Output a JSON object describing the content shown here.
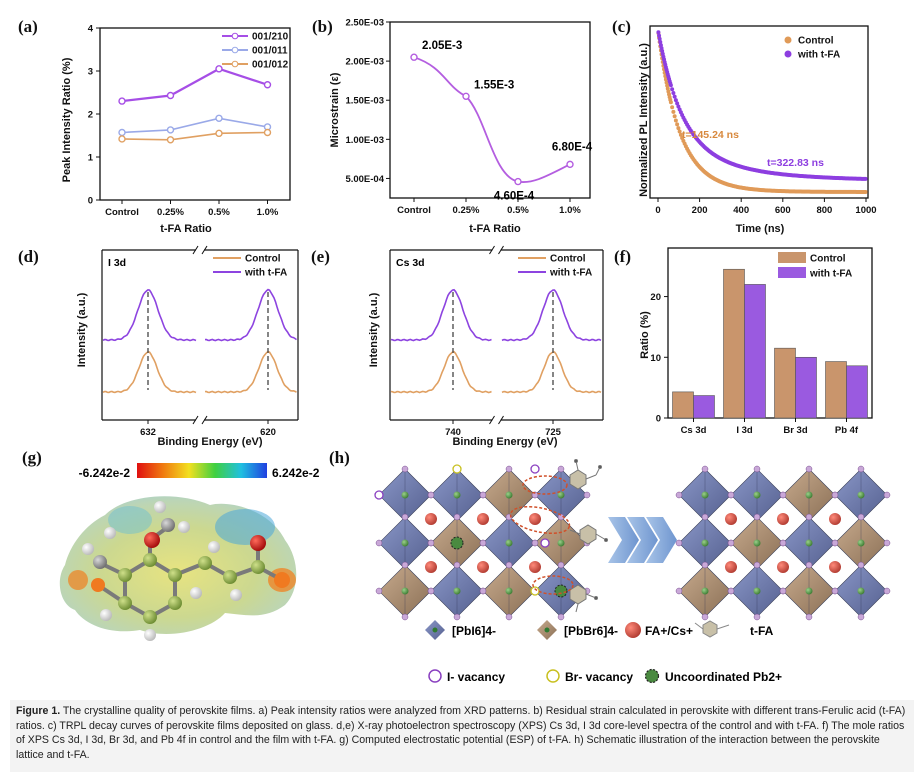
{
  "panels": {
    "a": {
      "label": "(a)"
    },
    "b": {
      "label": "(b)"
    },
    "c": {
      "label": "(c)"
    },
    "d": {
      "label": "(d)"
    },
    "e": {
      "label": "(e)"
    },
    "f": {
      "label": "(f)"
    },
    "g": {
      "label": "(g)",
      "scale_min": "-6.242e-2",
      "scale_max": "6.242e-2"
    },
    "h": {
      "label": "(h)",
      "legend": {
        "pbi6": "[PbI6]4-",
        "pbbr6": "[PbBr6]4-",
        "fa_cs": "FA+/Cs+",
        "tfa": "t-FA",
        "i_vac": "I- vacancy",
        "br_vac": "Br- vacancy",
        "pb_unc": "Uncoordinated Pb2+"
      }
    }
  },
  "chart_data": [
    {
      "id": "a",
      "type": "line",
      "title": "",
      "xlabel": "t-FA Ratio",
      "ylabel": "Peak Intensity Ratio (%)",
      "categories": [
        "Control",
        "0.25%",
        "0.5%",
        "1.0%"
      ],
      "ylim": [
        0,
        4
      ],
      "yticks": [
        0,
        1,
        2,
        3,
        4
      ],
      "series": [
        {
          "name": "001/210",
          "color": "#a64ee6",
          "values": [
            2.3,
            2.43,
            3.05,
            2.68
          ]
        },
        {
          "name": "001/011",
          "color": "#9aa9e8",
          "values": [
            1.57,
            1.63,
            1.9,
            1.7
          ]
        },
        {
          "name": "001/012",
          "color": "#e0a062",
          "values": [
            1.42,
            1.4,
            1.55,
            1.57
          ]
        }
      ]
    },
    {
      "id": "b",
      "type": "line",
      "title": "",
      "xlabel": "t-FA Ratio",
      "ylabel": "Microstrain (ε)",
      "categories": [
        "Control",
        "0.25%",
        "0.5%",
        "1.0%"
      ],
      "yticks": [
        "5.00E-04",
        "1.00E-03",
        "1.50E-03",
        "2.00E-03",
        "2.50E-03"
      ],
      "ylim": [
        0.00025,
        0.0025
      ],
      "series": [
        {
          "name": "Microstrain",
          "color": "#b45ee0",
          "values": [
            0.00205,
            0.00155,
            0.00046,
            0.00068
          ]
        }
      ],
      "annotations": [
        "2.05E-3",
        "1.55E-3",
        "4.60E-4",
        "6.80E-4"
      ]
    },
    {
      "id": "c",
      "type": "scatter",
      "title": "",
      "xlabel": "Time (ns)",
      "ylabel": "Normalized PL Intensity (a.u.)",
      "xlim": [
        0,
        1000
      ],
      "xticks": [
        0,
        200,
        400,
        600,
        800,
        1000
      ],
      "series": [
        {
          "name": "Control",
          "color": "#e09a58",
          "tau": 145.24
        },
        {
          "name": "with t-FA",
          "color": "#8d3ee0",
          "tau": 322.83
        }
      ],
      "annotations": [
        "t=145.24 ns",
        "t=322.83 ns"
      ]
    },
    {
      "id": "d",
      "type": "line",
      "title": "I 3d",
      "xlabel": "Binding Energy (eV)",
      "ylabel": "Intensity (a.u.)",
      "xticks": [
        "632",
        "620"
      ],
      "series": [
        {
          "name": "Control",
          "color": "#e0a062"
        },
        {
          "name": "with t-FA",
          "color": "#8d44e0"
        }
      ]
    },
    {
      "id": "e",
      "type": "line",
      "title": "Cs 3d",
      "xlabel": "Binding Energy (eV)",
      "ylabel": "Intensity (a.u.)",
      "xticks": [
        "740",
        "725"
      ],
      "series": [
        {
          "name": "Control",
          "color": "#e0a062"
        },
        {
          "name": "with t-FA",
          "color": "#8d44e0"
        }
      ]
    },
    {
      "id": "f",
      "type": "bar",
      "title": "",
      "xlabel": "",
      "ylabel": "Ratio (%)",
      "categories": [
        "Cs 3d",
        "I 3d",
        "Br 3d",
        "Pb 4f"
      ],
      "ylim": [
        0,
        28
      ],
      "yticks": [
        0,
        10,
        20
      ],
      "series": [
        {
          "name": "Control",
          "color": "#c9956c",
          "values": [
            4.3,
            24.5,
            11.5,
            9.3
          ]
        },
        {
          "name": "with t-FA",
          "color": "#9a5ae0",
          "values": [
            3.7,
            22.0,
            10.0,
            8.6
          ]
        }
      ]
    }
  ],
  "caption": {
    "label": "Figure 1.",
    "text": "The crystalline quality of perovskite films. a) Peak intensity ratios were analyzed from XRD patterns. b) Residual strain calculated in perovskite with different trans-Ferulic acid (t-FA) ratios. c) TRPL decay curves of perovskite films deposited on glass. d,e) X-ray photoelectron spectroscopy (XPS) Cs 3d, I 3d core-level spectra of the control and with t-FA. f) The mole ratios of XPS Cs 3d, I 3d, Br 3d, and Pb 4f in control and the film with t-FA. g) Computed electrostatic potential (ESP) of t-FA. h) Schematic illustration of the interaction between the perovskite lattice and t-FA."
  }
}
